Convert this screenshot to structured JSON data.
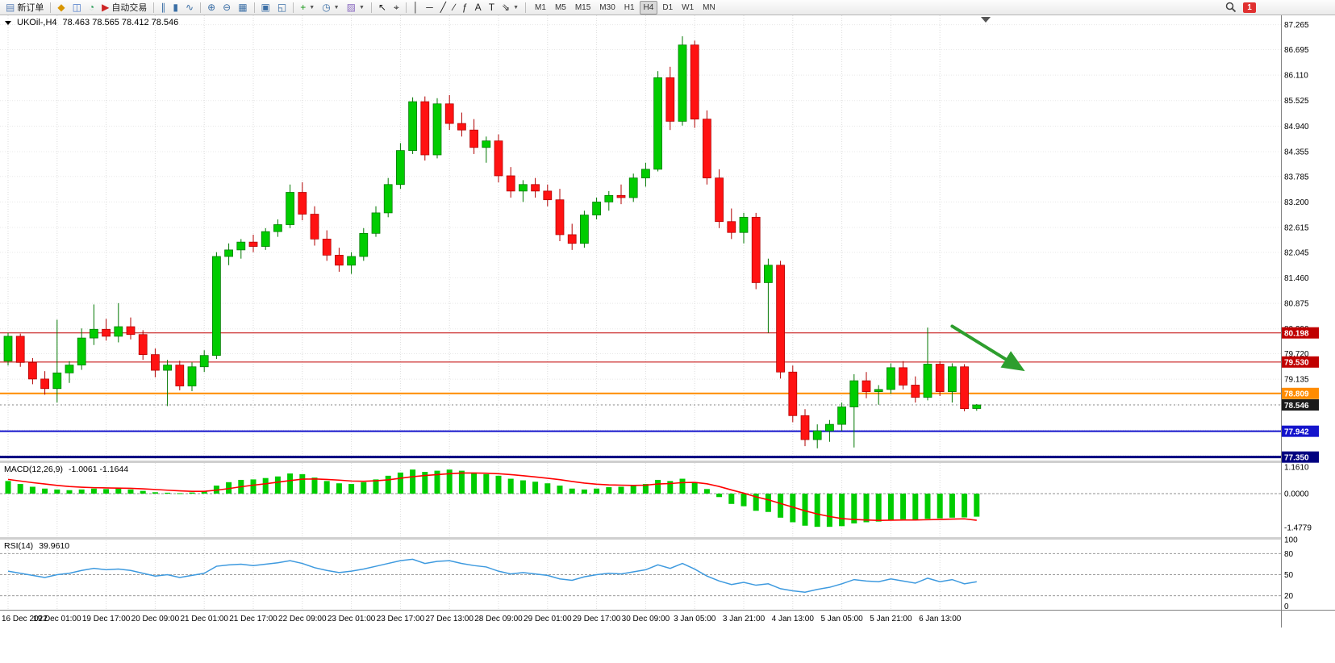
{
  "toolbar": {
    "notification_count": "1",
    "timeframes": {
      "options": [
        "M1",
        "M5",
        "M15",
        "M30",
        "H1",
        "H4",
        "D1",
        "W1",
        "MN"
      ],
      "active": "H4"
    },
    "items": [
      {
        "type": "button",
        "name": "new-order-button",
        "glyph": "▤",
        "glyph_color": "#5a7fb5",
        "label": "新订单"
      },
      {
        "type": "sep"
      },
      {
        "type": "button",
        "name": "market-watch-icon-button",
        "glyph": "◆",
        "glyph_color": "#d89500"
      },
      {
        "type": "button",
        "name": "data-window-icon-button",
        "glyph": "◫",
        "glyph_color": "#4a78c8"
      },
      {
        "type": "button",
        "name": "navigator-icon-button",
        "glyph": "◔",
        "glyph_color": "#2e9e5b"
      },
      {
        "type": "button",
        "name": "auto-trading-button",
        "glyph": "▶",
        "glyph_color": "#cc2222",
        "label": "自动交易"
      },
      {
        "type": "sep"
      },
      {
        "type": "button",
        "name": "bar-chart-icon-button",
        "glyph": "∥",
        "glyph_color": "#3a6ea5"
      },
      {
        "type": "button",
        "name": "candlestick-chart-icon-button",
        "glyph": "▮",
        "glyph_color": "#3a6ea5"
      },
      {
        "type": "button",
        "name": "line-chart-icon-button",
        "glyph": "∿",
        "glyph_color": "#3a6ea5"
      },
      {
        "type": "sep"
      },
      {
        "type": "button",
        "name": "zoom-in-icon-button",
        "glyph": "⊕",
        "glyph_color": "#3a6ea5"
      },
      {
        "type": "button",
        "name": "zoom-out-icon-button",
        "glyph": "⊖",
        "glyph_color": "#3a6ea5"
      },
      {
        "type": "button",
        "name": "tile-windows-icon-button",
        "glyph": "▦",
        "glyph_color": "#3a6ea5"
      },
      {
        "type": "sep"
      },
      {
        "type": "button",
        "name": "auto-scroll-icon-button",
        "glyph": "▣",
        "glyph_color": "#3a6ea5"
      },
      {
        "type": "button",
        "name": "chart-shift-icon-button",
        "glyph": "◱",
        "glyph_color": "#3a6ea5"
      },
      {
        "type": "sep"
      },
      {
        "type": "button",
        "name": "indicators-icon-button",
        "glyph": "+",
        "glyph_color": "#149614",
        "dropdown": true
      },
      {
        "type": "button",
        "name": "periods-icon-button",
        "glyph": "◷",
        "glyph_color": "#3a6ea5",
        "dropdown": true
      },
      {
        "type": "button",
        "name": "templates-icon-button",
        "glyph": "▨",
        "glyph_color": "#8a6ac0",
        "dropdown": true
      },
      {
        "type": "sep"
      },
      {
        "type": "button",
        "name": "cursor-icon-button",
        "glyph": "↖",
        "glyph_color": "#222222"
      },
      {
        "type": "button",
        "name": "crosshair-icon-button",
        "glyph": "⌖",
        "glyph_color": "#222222"
      },
      {
        "type": "sep"
      },
      {
        "type": "button",
        "name": "vertical-line-icon-button",
        "glyph": "│",
        "glyph_color": "#222222"
      },
      {
        "type": "button",
        "name": "horizontal-line-icon-button",
        "glyph": "─",
        "glyph_color": "#222222"
      },
      {
        "type": "button",
        "name": "trendline-icon-button",
        "glyph": "╱",
        "glyph_color": "#222222"
      },
      {
        "type": "button",
        "name": "equidistant-channel-icon-button",
        "glyph": "∕",
        "glyph_color": "#222222"
      },
      {
        "type": "button",
        "name": "fibonacci-icon-button",
        "glyph": "ƒ",
        "glyph_color": "#222222"
      },
      {
        "type": "button",
        "name": "text-icon-button",
        "glyph": "A",
        "glyph_color": "#222222"
      },
      {
        "type": "button",
        "name": "text-label-icon-button",
        "glyph": "T",
        "glyph_color": "#222222"
      },
      {
        "type": "button",
        "name": "arrows-icon-button",
        "glyph": "⇘",
        "glyph_color": "#222222",
        "dropdown": true
      },
      {
        "type": "sep"
      }
    ]
  },
  "chart": {
    "symbol_title": "UKOil-,H4",
    "ohlc": "78.463 78.565 78.412 78.546"
  },
  "chart_data": {
    "type": "candlestick",
    "symbol": "UKOil-",
    "timeframe": "H4",
    "x_label_step": 4,
    "x_labels": [
      "16 Dec 2022",
      "19 Dec 01:00",
      "19 Dec 17:00",
      "20 Dec 09:00",
      "21 Dec 01:00",
      "21 Dec 17:00",
      "22 Dec 09:00",
      "23 Dec 01:00",
      "23 Dec 17:00",
      "27 Dec 13:00",
      "28 Dec 09:00",
      "29 Dec 01:00",
      "29 Dec 17:00",
      "30 Dec 09:00",
      "3 Jan 05:00",
      "3 Jan 21:00",
      "4 Jan 13:00",
      "5 Jan 05:00",
      "5 Jan 21:00",
      "6 Jan 13:00"
    ],
    "price_range": [
      77.27,
      87.48
    ],
    "price_ticks": [
      "87.265",
      "86.695",
      "86.110",
      "85.525",
      "84.940",
      "84.355",
      "83.785",
      "83.200",
      "82.615",
      "82.045",
      "81.460",
      "80.875",
      "80.290",
      "79.720",
      "79.135",
      "78.550",
      "77.965",
      "77.380"
    ],
    "colors": {
      "up": "#00CC00",
      "up_edge": "#007700",
      "down": "#FF1212",
      "down_edge": "#B00000",
      "grid": "#e8e8e8",
      "vgrid": "#dcdcdc",
      "background": "#ffffff"
    },
    "candles": [
      [
        79.55,
        80.2,
        79.45,
        80.12
      ],
      [
        80.12,
        80.18,
        79.42,
        79.52
      ],
      [
        79.52,
        79.62,
        79.02,
        79.14
      ],
      [
        79.14,
        79.32,
        78.78,
        78.92
      ],
      [
        78.92,
        80.5,
        78.6,
        79.28
      ],
      [
        79.28,
        79.55,
        79.05,
        79.46
      ],
      [
        79.46,
        80.3,
        79.35,
        80.08
      ],
      [
        80.08,
        80.85,
        79.92,
        80.28
      ],
      [
        80.28,
        80.52,
        80.02,
        80.12
      ],
      [
        80.12,
        80.88,
        79.98,
        80.34
      ],
      [
        80.34,
        80.55,
        80.05,
        80.16
      ],
      [
        80.16,
        80.26,
        79.58,
        79.7
      ],
      [
        79.7,
        79.84,
        79.18,
        79.34
      ],
      [
        79.34,
        79.58,
        78.52,
        79.46
      ],
      [
        79.46,
        79.56,
        78.88,
        78.98
      ],
      [
        78.98,
        79.52,
        78.86,
        79.42
      ],
      [
        79.42,
        79.8,
        79.3,
        79.68
      ],
      [
        79.68,
        82.05,
        79.6,
        81.95
      ],
      [
        81.95,
        82.25,
        81.75,
        82.1
      ],
      [
        82.1,
        82.35,
        81.9,
        82.28
      ],
      [
        82.28,
        82.45,
        82.05,
        82.18
      ],
      [
        82.18,
        82.6,
        82.1,
        82.52
      ],
      [
        82.52,
        82.8,
        82.4,
        82.68
      ],
      [
        82.68,
        83.6,
        82.6,
        83.42
      ],
      [
        83.42,
        83.65,
        82.78,
        82.92
      ],
      [
        82.92,
        83.1,
        82.2,
        82.35
      ],
      [
        82.35,
        82.55,
        81.85,
        81.98
      ],
      [
        81.98,
        82.15,
        81.6,
        81.75
      ],
      [
        81.75,
        82.05,
        81.55,
        81.95
      ],
      [
        81.95,
        82.6,
        81.85,
        82.48
      ],
      [
        82.48,
        83.1,
        82.4,
        82.95
      ],
      [
        82.95,
        83.75,
        82.85,
        83.6
      ],
      [
        83.6,
        84.55,
        83.5,
        84.38
      ],
      [
        84.38,
        85.6,
        84.3,
        85.5
      ],
      [
        85.5,
        85.62,
        84.15,
        84.28
      ],
      [
        84.28,
        85.58,
        84.2,
        85.45
      ],
      [
        85.45,
        85.65,
        84.85,
        85.0
      ],
      [
        85.0,
        85.25,
        84.7,
        84.85
      ],
      [
        84.85,
        85.1,
        84.3,
        84.45
      ],
      [
        84.45,
        84.7,
        84.1,
        84.6
      ],
      [
        84.6,
        84.75,
        83.65,
        83.8
      ],
      [
        83.8,
        84.0,
        83.3,
        83.45
      ],
      [
        83.45,
        83.7,
        83.2,
        83.6
      ],
      [
        83.6,
        83.75,
        83.3,
        83.45
      ],
      [
        83.45,
        83.6,
        83.1,
        83.25
      ],
      [
        83.25,
        83.5,
        82.3,
        82.45
      ],
      [
        82.45,
        82.7,
        82.1,
        82.25
      ],
      [
        82.25,
        83.0,
        82.15,
        82.9
      ],
      [
        82.9,
        83.3,
        82.8,
        83.2
      ],
      [
        83.2,
        83.45,
        83.0,
        83.35
      ],
      [
        83.35,
        83.6,
        83.15,
        83.3
      ],
      [
        83.3,
        83.85,
        83.2,
        83.75
      ],
      [
        83.75,
        84.1,
        83.55,
        83.95
      ],
      [
        83.95,
        86.2,
        83.9,
        86.05
      ],
      [
        86.05,
        86.3,
        84.85,
        85.05
      ],
      [
        85.05,
        87.0,
        84.95,
        86.8
      ],
      [
        86.8,
        86.9,
        84.9,
        85.1
      ],
      [
        85.1,
        85.3,
        83.6,
        83.75
      ],
      [
        83.75,
        83.95,
        82.6,
        82.75
      ],
      [
        82.75,
        83.05,
        82.35,
        82.5
      ],
      [
        82.5,
        82.95,
        82.25,
        82.85
      ],
      [
        82.85,
        82.95,
        81.2,
        81.35
      ],
      [
        81.35,
        81.9,
        80.2,
        81.75
      ],
      [
        81.75,
        81.85,
        79.15,
        79.3
      ],
      [
        79.3,
        79.45,
        78.15,
        78.3
      ],
      [
        78.3,
        78.45,
        77.6,
        77.75
      ],
      [
        77.75,
        78.1,
        77.55,
        77.95
      ],
      [
        77.95,
        78.2,
        77.7,
        78.1
      ],
      [
        78.1,
        78.6,
        77.95,
        78.5
      ],
      [
        78.5,
        79.25,
        77.57,
        79.1
      ],
      [
        79.1,
        79.3,
        78.7,
        78.85
      ],
      [
        78.85,
        79.0,
        78.55,
        78.9
      ],
      [
        78.9,
        79.5,
        78.8,
        79.4
      ],
      [
        79.4,
        79.55,
        78.9,
        79.0
      ],
      [
        79.0,
        79.2,
        78.6,
        78.72
      ],
      [
        78.72,
        80.32,
        78.65,
        79.48
      ],
      [
        79.48,
        79.55,
        78.75,
        78.85
      ],
      [
        78.85,
        79.5,
        78.6,
        79.42
      ],
      [
        79.42,
        79.48,
        78.4,
        78.46
      ],
      [
        78.463,
        78.565,
        78.412,
        78.546
      ]
    ],
    "hlines": [
      {
        "price": 80.198,
        "label": "80.198",
        "color": "#C00000",
        "width": 1
      },
      {
        "price": 79.53,
        "label": "79.530",
        "color": "#C00000",
        "width": 1
      },
      {
        "price": 78.809,
        "label": "78.809",
        "color": "#FF8C00",
        "width": 2
      },
      {
        "price": 77.942,
        "label": "77.942",
        "color": "#1414CC",
        "width": 2
      },
      {
        "price": 77.35,
        "label": "77.350",
        "color": "#000080",
        "width": 3
      }
    ],
    "bid": {
      "price": 78.546,
      "label": "78.546",
      "badge_color": "#1a1a1a",
      "line_color": "#8a8a8a"
    },
    "trend_arrow": {
      "from_index": 77.0,
      "from_price": 80.35,
      "to_index": 82.6,
      "to_price": 79.38,
      "color": "#2E9E2E"
    },
    "macd": {
      "title": "MACD(12,26,9)",
      "values": "-1.0061 -1.1644",
      "scale": [
        [
          "1.1610",
          1.161
        ],
        [
          "0.0000",
          0
        ],
        [
          "-1.4779",
          -1.4779
        ]
      ],
      "histogram_color": "#00CC00",
      "signal_color": "#FF0000",
      "histogram": [
        0.55,
        0.42,
        0.3,
        0.22,
        0.18,
        0.15,
        0.18,
        0.22,
        0.2,
        0.22,
        0.18,
        0.12,
        0.06,
        0.04,
        0.02,
        0.05,
        0.1,
        0.35,
        0.5,
        0.6,
        0.62,
        0.68,
        0.75,
        0.88,
        0.85,
        0.7,
        0.55,
        0.45,
        0.42,
        0.5,
        0.62,
        0.78,
        0.92,
        1.05,
        0.95,
        1.0,
        1.05,
        1.0,
        0.92,
        0.85,
        0.78,
        0.65,
        0.58,
        0.52,
        0.45,
        0.35,
        0.22,
        0.18,
        0.22,
        0.28,
        0.3,
        0.35,
        0.42,
        0.6,
        0.55,
        0.65,
        0.5,
        0.2,
        -0.15,
        -0.45,
        -0.55,
        -0.75,
        -0.8,
        -1.05,
        -1.25,
        -1.4,
        -1.45,
        -1.45,
        -1.42,
        -1.3,
        -1.25,
        -1.22,
        -1.15,
        -1.12,
        -1.15,
        -1.1,
        -1.08,
        -1.05,
        -1.04,
        -1.0061
      ],
      "signal": [
        0.62,
        0.55,
        0.48,
        0.42,
        0.36,
        0.31,
        0.28,
        0.26,
        0.25,
        0.24,
        0.23,
        0.21,
        0.18,
        0.15,
        0.12,
        0.1,
        0.1,
        0.15,
        0.22,
        0.3,
        0.37,
        0.43,
        0.5,
        0.57,
        0.63,
        0.64,
        0.62,
        0.59,
        0.55,
        0.54,
        0.56,
        0.6,
        0.67,
        0.74,
        0.79,
        0.83,
        0.87,
        0.9,
        0.9,
        0.89,
        0.87,
        0.83,
        0.78,
        0.73,
        0.67,
        0.61,
        0.53,
        0.46,
        0.41,
        0.38,
        0.37,
        0.36,
        0.37,
        0.42,
        0.44,
        0.48,
        0.49,
        0.43,
        0.31,
        0.16,
        0.02,
        -0.14,
        -0.27,
        -0.43,
        -0.59,
        -0.75,
        -0.89,
        -1.0,
        -1.09,
        -1.13,
        -1.15,
        -1.17,
        -1.16,
        -1.15,
        -1.15,
        -1.14,
        -1.13,
        -1.11,
        -1.1,
        -1.1644
      ]
    },
    "rsi": {
      "title": "RSI(14)",
      "value": "39.9610",
      "color": "#3E9ADF",
      "levels": [
        80,
        50,
        20
      ],
      "scale": [
        [
          "100",
          100
        ],
        [
          "80",
          80
        ],
        [
          "50",
          50
        ],
        [
          "20",
          20
        ],
        [
          "0",
          0
        ]
      ],
      "values": [
        55,
        52,
        49,
        46,
        50,
        52,
        56,
        59,
        57,
        58,
        56,
        52,
        48,
        50,
        46,
        49,
        52,
        62,
        64,
        65,
        63,
        65,
        67,
        70,
        66,
        60,
        56,
        53,
        55,
        58,
        62,
        66,
        70,
        72,
        66,
        69,
        70,
        66,
        63,
        61,
        55,
        51,
        53,
        51,
        49,
        44,
        42,
        47,
        50,
        52,
        51,
        54,
        57,
        64,
        59,
        66,
        58,
        48,
        41,
        36,
        39,
        35,
        37,
        30,
        27,
        25,
        29,
        32,
        37,
        43,
        41,
        40,
        44,
        41,
        38,
        45,
        40,
        43,
        37,
        39.96
      ]
    }
  }
}
